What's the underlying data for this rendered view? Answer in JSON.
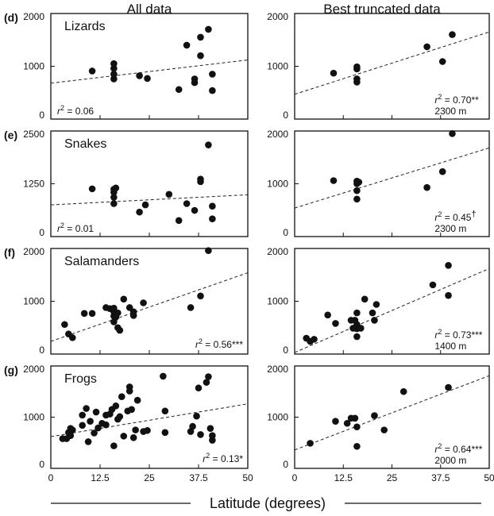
{
  "column_titles": [
    "All data",
    "Best truncated data"
  ],
  "x_axis_label": "Latitude (degrees)",
  "chart_data": [
    {
      "type": "scatter",
      "row_label": "(d)",
      "taxon": "Lizards",
      "xlim": [
        0,
        50
      ],
      "ylim": [
        0,
        2000
      ],
      "x_ticks": [
        "0",
        "12.5",
        "25",
        "37.5",
        "50"
      ],
      "y_ticks": [
        "0",
        "1000",
        "2000"
      ],
      "panels": [
        {
          "column": "All data",
          "points": [
            [
              10.5,
              910
            ],
            [
              16,
              760
            ],
            [
              16,
              850
            ],
            [
              16,
              960
            ],
            [
              16,
              1050
            ],
            [
              22.5,
              820
            ],
            [
              24.5,
              770
            ],
            [
              32.5,
              560
            ],
            [
              34.5,
              1400
            ],
            [
              36.5,
              690
            ],
            [
              36.5,
              760
            ],
            [
              38,
              1200
            ],
            [
              38,
              1550
            ],
            [
              40,
              1700
            ],
            [
              41,
              850
            ],
            [
              41,
              540
            ]
          ],
          "fit": [
            [
              0,
              680
            ],
            [
              50,
              1120
            ]
          ],
          "stat_r2": "0.06",
          "stat_sig": "",
          "stat_extra": ""
        },
        {
          "column": "Best truncated data",
          "points": [
            [
              10,
              870
            ],
            [
              16,
              700
            ],
            [
              16,
              760
            ],
            [
              16,
              950
            ],
            [
              16,
              990
            ],
            [
              34,
              1370
            ],
            [
              38,
              1090
            ],
            [
              40.5,
              1600
            ]
          ],
          "fit": [
            [
              0,
              470
            ],
            [
              50,
              1650
            ]
          ],
          "stat_r2": "0.70",
          "stat_sig": "**",
          "stat_extra": "2300 m"
        }
      ]
    },
    {
      "type": "scatter",
      "row_label": "(e)",
      "taxon": "Snakes",
      "xlim": [
        0,
        50
      ],
      "ylim_left": [
        0,
        2500
      ],
      "ylim_right": [
        0,
        2000
      ],
      "x_ticks": [
        "0",
        "12.5",
        "25",
        "37.5",
        "50"
      ],
      "y_ticks_left": [
        "0",
        "1250",
        "2500"
      ],
      "y_ticks_right": [
        "0",
        "1000",
        "2000"
      ],
      "panels": [
        {
          "column": "All data",
          "points": [
            [
              10.5,
              1130
            ],
            [
              16,
              780
            ],
            [
              16,
              930
            ],
            [
              16,
              1050
            ],
            [
              16,
              1120
            ],
            [
              16.5,
              1150
            ],
            [
              22.5,
              580
            ],
            [
              24,
              750
            ],
            [
              30,
              1000
            ],
            [
              32.5,
              380
            ],
            [
              34.5,
              780
            ],
            [
              36.5,
              620
            ],
            [
              38,
              1300
            ],
            [
              38,
              1360
            ],
            [
              40,
              2170
            ],
            [
              41,
              720
            ],
            [
              41,
              420
            ]
          ],
          "fit": [
            [
              0,
              750
            ],
            [
              50,
              990
            ]
          ],
          "stat_r2": "0.01",
          "stat_sig": "",
          "stat_extra": ""
        },
        {
          "column": "Best truncated data",
          "points": [
            [
              10,
              1060
            ],
            [
              16,
              710
            ],
            [
              16,
              870
            ],
            [
              16,
              1000
            ],
            [
              16,
              1050
            ],
            [
              16.5,
              1030
            ],
            [
              34,
              930
            ],
            [
              38,
              1230
            ],
            [
              40.5,
              1950
            ]
          ],
          "fit": [
            [
              0,
              540
            ],
            [
              50,
              1680
            ]
          ],
          "stat_r2": "0.45",
          "stat_sig": "†",
          "stat_extra": "2300 m"
        }
      ]
    },
    {
      "type": "scatter",
      "row_label": "(f)",
      "taxon": "Salamanders",
      "xlim": [
        0,
        50
      ],
      "ylim": [
        0,
        2000
      ],
      "x_ticks": [
        "0",
        "12.5",
        "25",
        "37.5",
        "50"
      ],
      "y_ticks": [
        "0",
        "1000",
        "2000"
      ],
      "panels": [
        {
          "column": "All data",
          "points": [
            [
              3.5,
              560
            ],
            [
              4.5,
              380
            ],
            [
              5.5,
              310
            ],
            [
              8.5,
              770
            ],
            [
              10.5,
              770
            ],
            [
              14,
              880
            ],
            [
              15,
              860
            ],
            [
              16,
              610
            ],
            [
              16,
              720
            ],
            [
              16,
              800
            ],
            [
              16,
              870
            ],
            [
              16.5,
              700
            ],
            [
              17,
              780
            ],
            [
              17,
              500
            ],
            [
              17.5,
              450
            ],
            [
              18.5,
              1040
            ],
            [
              20,
              880
            ],
            [
              21,
              730
            ],
            [
              21,
              800
            ],
            [
              23.5,
              970
            ],
            [
              35.5,
              880
            ],
            [
              38,
              1100
            ],
            [
              40,
              1960
            ]
          ],
          "fit": [
            [
              0,
              240
            ],
            [
              50,
              1540
            ]
          ],
          "stat_r2": "0.56",
          "stat_sig": "***",
          "stat_extra": ""
        },
        {
          "column": "Best truncated data",
          "points": [
            [
              3,
              300
            ],
            [
              4,
              240
            ],
            [
              5,
              280
            ],
            [
              8.5,
              740
            ],
            [
              10.5,
              580
            ],
            [
              14.5,
              640
            ],
            [
              15,
              490
            ],
            [
              15.5,
              640
            ],
            [
              16,
              330
            ],
            [
              16,
              480
            ],
            [
              16,
              560
            ],
            [
              16,
              780
            ],
            [
              17,
              490
            ],
            [
              18,
              1040
            ],
            [
              20,
              780
            ],
            [
              20.5,
              640
            ],
            [
              21,
              940
            ],
            [
              35.5,
              1310
            ],
            [
              39.5,
              1680
            ],
            [
              39.5,
              1110
            ]
          ],
          "fit": [
            [
              0,
              30
            ],
            [
              50,
              1620
            ]
          ],
          "stat_r2": "0.73",
          "stat_sig": "***",
          "stat_extra": "1400 m"
        }
      ]
    },
    {
      "type": "scatter",
      "row_label": "(g)",
      "taxon": "Frogs",
      "xlim": [
        0,
        50
      ],
      "ylim": [
        0,
        2000
      ],
      "x_ticks": [
        "0",
        "12.5",
        "25",
        "37.5",
        "50"
      ],
      "y_ticks": [
        "0",
        "1000",
        "2000"
      ],
      "panels": [
        {
          "column": "All data",
          "points": [
            [
              3,
              580
            ],
            [
              4,
              580
            ],
            [
              4.5,
              700
            ],
            [
              5,
              640
            ],
            [
              5.5,
              750
            ],
            [
              5,
              780
            ],
            [
              8,
              840
            ],
            [
              8,
              1040
            ],
            [
              9,
              1170
            ],
            [
              9.5,
              520
            ],
            [
              10,
              920
            ],
            [
              11,
              690
            ],
            [
              11.5,
              1100
            ],
            [
              12,
              790
            ],
            [
              13,
              880
            ],
            [
              14,
              850
            ],
            [
              14,
              1040
            ],
            [
              15,
              1060
            ],
            [
              15.5,
              1150
            ],
            [
              16,
              440
            ],
            [
              16.5,
              1220
            ],
            [
              17,
              960
            ],
            [
              17.5,
              1010
            ],
            [
              18,
              1400
            ],
            [
              18.5,
              630
            ],
            [
              19.5,
              1120
            ],
            [
              20,
              1510
            ],
            [
              20,
              1590
            ],
            [
              20.5,
              1150
            ],
            [
              21,
              600
            ],
            [
              21.5,
              750
            ],
            [
              22,
              1330
            ],
            [
              23.5,
              720
            ],
            [
              24.5,
              740
            ],
            [
              28.5,
              1800
            ],
            [
              29,
              1120
            ],
            [
              29,
              700
            ],
            [
              35.5,
              720
            ],
            [
              36,
              820
            ],
            [
              37,
              1020
            ],
            [
              37.5,
              1570
            ],
            [
              38,
              660
            ],
            [
              39.5,
              1680
            ],
            [
              40,
              1790
            ],
            [
              40.5,
              780
            ],
            [
              41,
              640
            ],
            [
              41,
              550
            ]
          ],
          "fit": [
            [
              0,
              620
            ],
            [
              50,
              1260
            ]
          ],
          "stat_r2": "0.13",
          "stat_sig": "*",
          "stat_extra": ""
        },
        {
          "column": "Best truncated data",
          "points": [
            [
              4,
              490
            ],
            [
              10.5,
              920
            ],
            [
              13.5,
              880
            ],
            [
              14.5,
              980
            ],
            [
              15.5,
              980
            ],
            [
              16,
              810
            ],
            [
              16,
              430
            ],
            [
              20.5,
              1030
            ],
            [
              23,
              750
            ],
            [
              28,
              1500
            ],
            [
              39.5,
              1580
            ]
          ],
          "fit": [
            [
              0,
              360
            ],
            [
              50,
              1810
            ]
          ],
          "stat_r2": "0.64",
          "stat_sig": "***",
          "stat_extra": "2000 m"
        }
      ]
    }
  ]
}
